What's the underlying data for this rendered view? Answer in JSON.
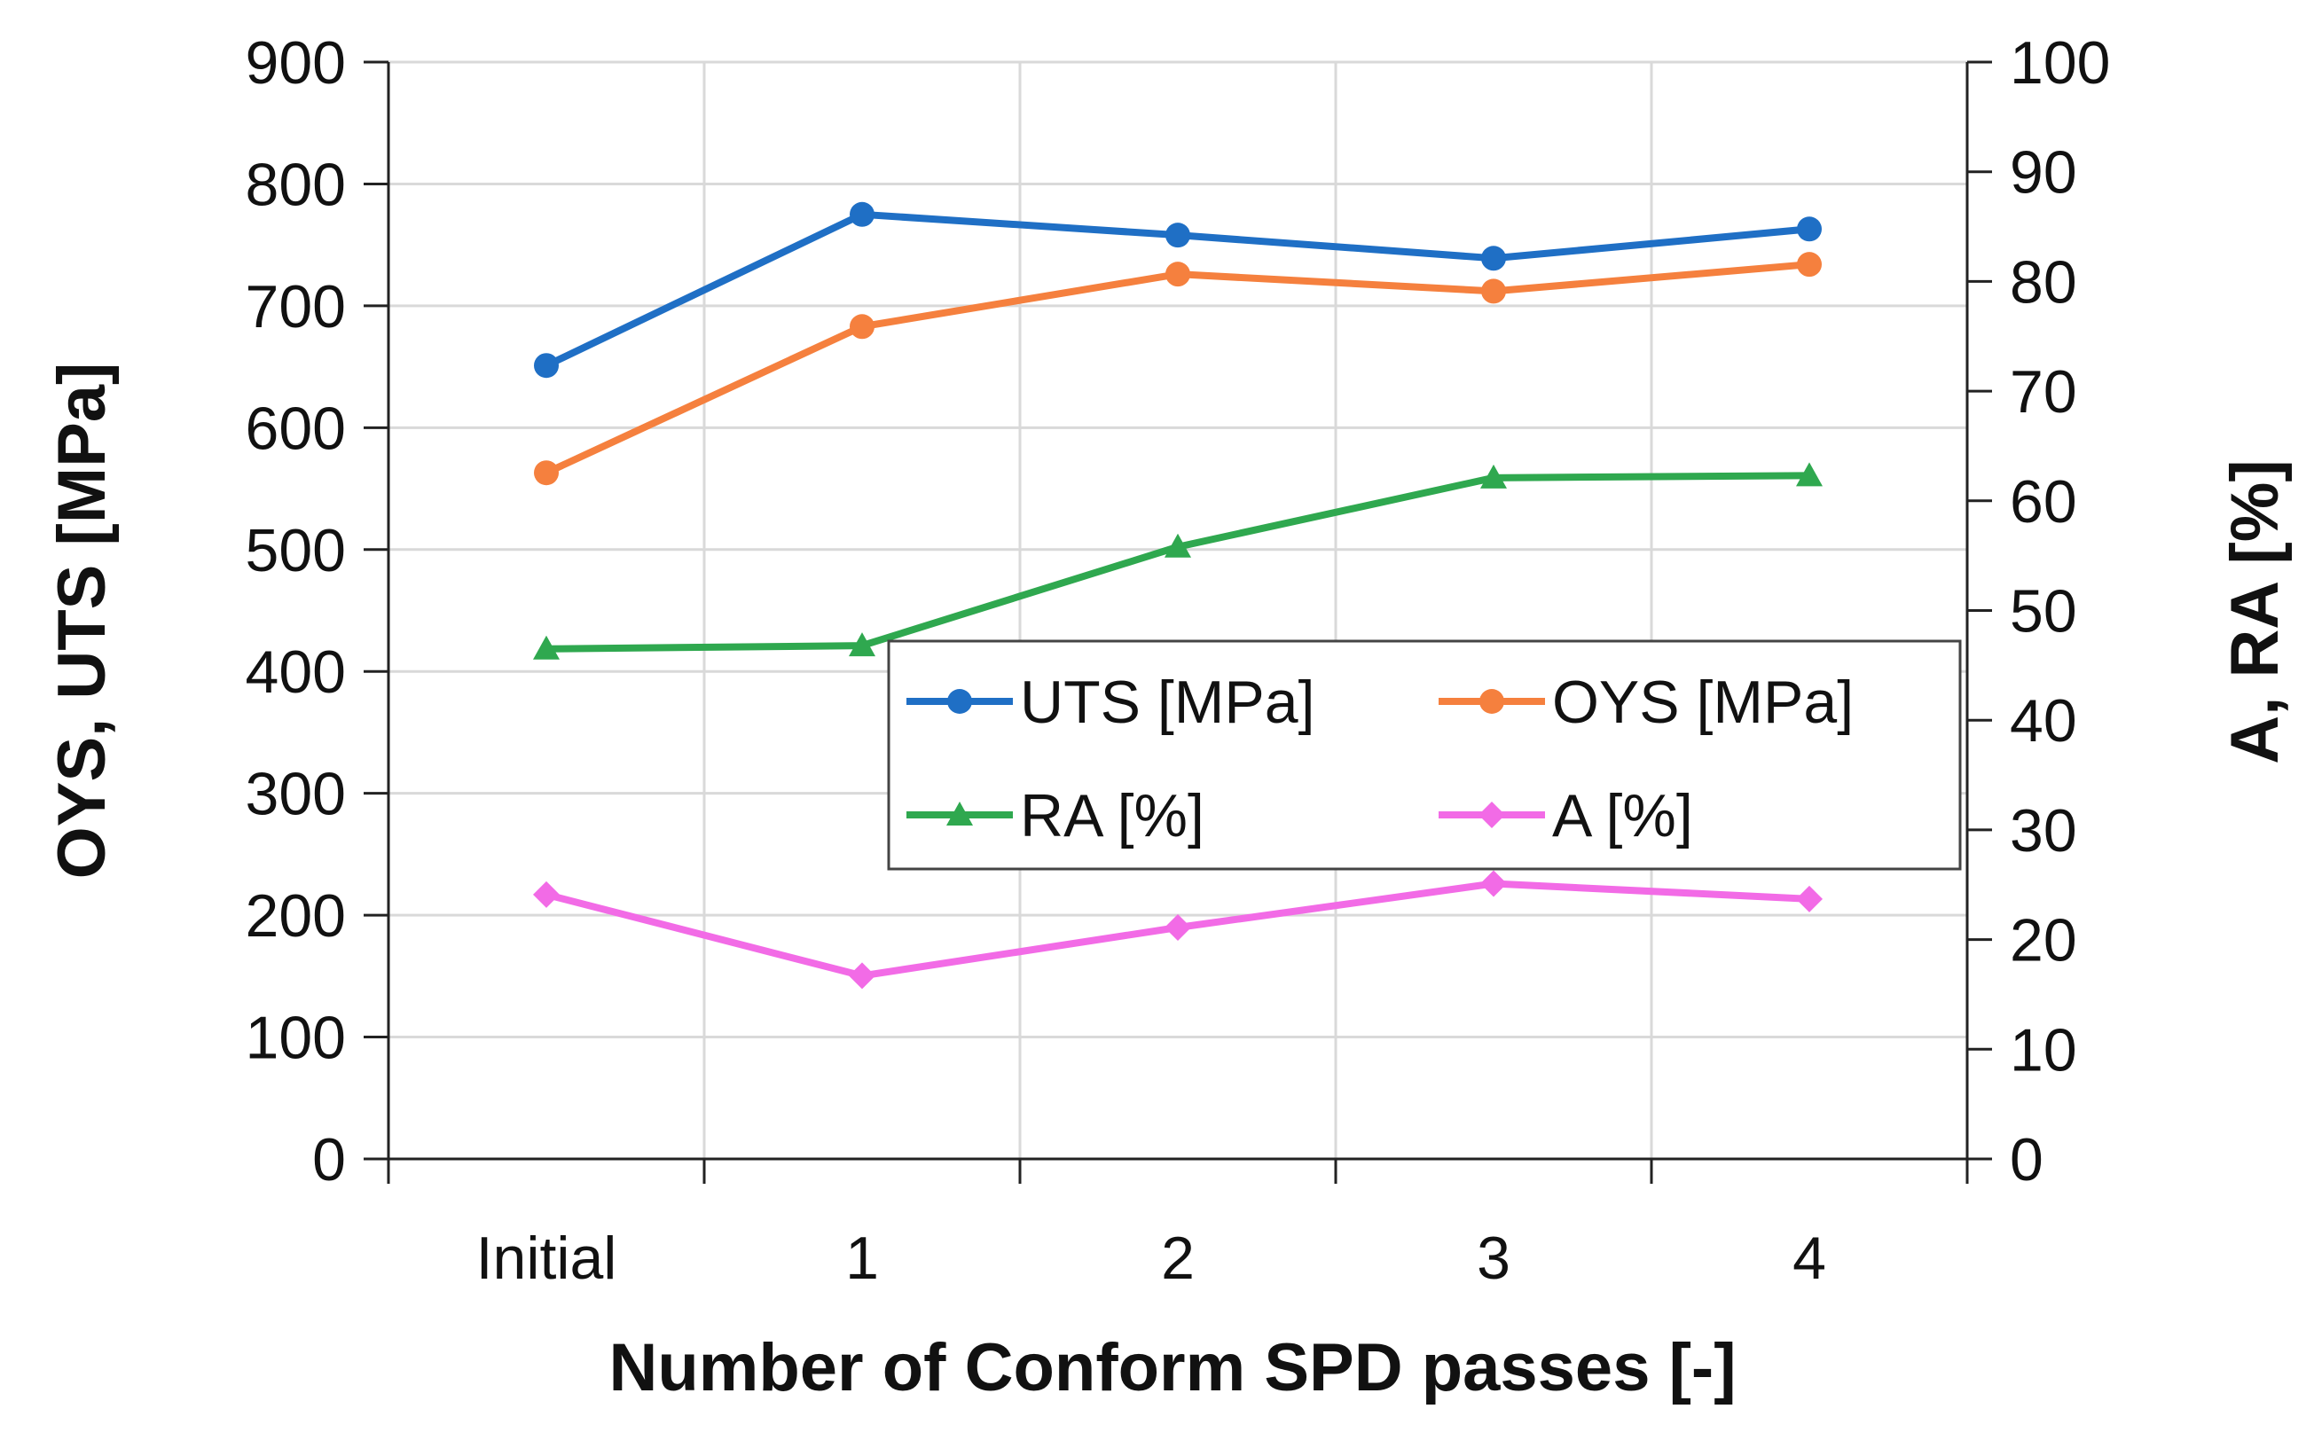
{
  "chart_data": {
    "type": "line",
    "categories": [
      "Initial",
      "1",
      "2",
      "3",
      "4"
    ],
    "xlabel": "Number of Conform SPD passes [-]",
    "ylabel": "OYS, UTS [MPa]",
    "y2label": "A, RA [%]",
    "ylim": [
      0,
      900
    ],
    "yticks": [
      "0",
      "100",
      "200",
      "300",
      "400",
      "500",
      "600",
      "700",
      "800",
      "900"
    ],
    "y2lim": [
      0,
      100
    ],
    "y2ticks": [
      "0",
      "10",
      "20",
      "30",
      "40",
      "50",
      "60",
      "70",
      "80",
      "90",
      "100"
    ],
    "grid": true,
    "legend_position": "center-right",
    "series": [
      {
        "name": "UTS [MPa]",
        "axis": "left",
        "color": "#1f6fc5",
        "marker": "circle",
        "values": [
          651,
          775,
          758,
          739,
          763
        ]
      },
      {
        "name": "OYS [MPa]",
        "axis": "left",
        "color": "#f5803e",
        "marker": "circle",
        "values": [
          563,
          683,
          726,
          712,
          734
        ]
      },
      {
        "name": "RA [%]",
        "axis": "right",
        "color": "#2fa84f",
        "marker": "triangle",
        "values": [
          46.5,
          46.8,
          55.8,
          62.1,
          62.3
        ]
      },
      {
        "name": "A [%]",
        "axis": "right",
        "color": "#f26be6",
        "marker": "diamond",
        "values": [
          24.1,
          16.7,
          21.1,
          25.1,
          23.7
        ]
      }
    ]
  }
}
